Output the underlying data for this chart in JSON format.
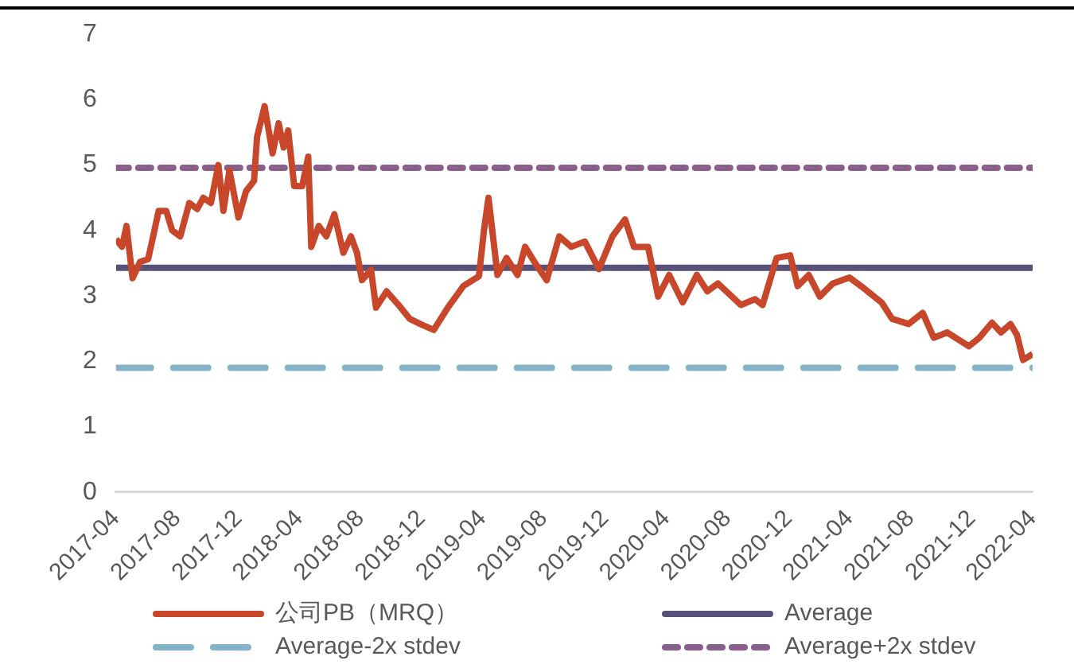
{
  "chart_data": {
    "type": "line",
    "legend": "bottom",
    "grid": false,
    "marker": "none",
    "x": [
      "2017-04-01",
      "2017-04-13",
      "2017-04-22",
      "2017-05-04",
      "2017-05-19",
      "2017-06-04",
      "2017-06-14",
      "2017-06-25",
      "2017-07-10",
      "2017-07-22",
      "2017-08-07",
      "2017-08-25",
      "2017-09-10",
      "2017-09-22",
      "2017-10-07",
      "2017-10-22",
      "2017-11-01",
      "2017-11-13",
      "2017-12-01",
      "2017-12-16",
      "2018-01-01",
      "2018-01-07",
      "2018-01-22",
      "2018-02-07",
      "2018-02-19",
      "2018-03-01",
      "2018-03-10",
      "2018-03-22",
      "2018-04-07",
      "2018-04-19",
      "2018-04-25",
      "2018-05-10",
      "2018-05-25",
      "2018-06-10",
      "2018-06-28",
      "2018-07-13",
      "2018-07-25",
      "2018-08-04",
      "2018-08-22",
      "2018-09-01",
      "2018-09-22",
      "2018-10-16",
      "2018-11-07",
      "2018-11-28",
      "2018-12-25",
      "2019-01-22",
      "2019-02-22",
      "2019-03-25",
      "2019-04-04",
      "2019-04-13",
      "2019-04-22",
      "2019-05-01",
      "2019-05-19",
      "2019-06-10",
      "2019-06-25",
      "2019-07-16",
      "2019-08-07",
      "2019-09-01",
      "2019-09-25",
      "2019-10-22",
      "2019-11-19",
      "2019-12-16",
      "2020-01-10",
      "2020-01-28",
      "2020-02-25",
      "2020-03-16",
      "2020-04-07",
      "2020-05-04",
      "2020-06-01",
      "2020-06-22",
      "2020-07-13",
      "2020-08-28",
      "2020-09-25",
      "2020-10-10",
      "2020-11-07",
      "2020-12-04",
      "2020-12-19",
      "2021-01-10",
      "2021-02-01",
      "2021-02-27",
      "2021-04-01",
      "2021-05-01",
      "2021-06-04",
      "2021-06-25",
      "2021-07-28",
      "2021-08-25",
      "2021-09-16",
      "2021-10-13",
      "2021-11-25",
      "2021-12-16",
      "2022-01-10",
      "2022-01-28",
      "2022-02-16",
      "2022-03-01",
      "2022-03-13",
      "2022-04-01"
    ],
    "series": [
      {
        "name": "公司PB（MRQ）",
        "color": "#c8472a",
        "line_style": "solid",
        "values": [
          3.87,
          3.75,
          4.07,
          3.27,
          3.52,
          3.56,
          3.91,
          4.3,
          4.3,
          4.0,
          3.91,
          4.42,
          4.33,
          4.5,
          4.42,
          5.0,
          4.3,
          4.92,
          4.2,
          4.6,
          4.76,
          5.43,
          5.9,
          5.18,
          5.64,
          5.27,
          5.53,
          4.68,
          4.68,
          5.13,
          3.75,
          4.07,
          3.91,
          4.25,
          3.66,
          3.91,
          3.66,
          3.24,
          3.4,
          2.82,
          3.07,
          2.86,
          2.65,
          2.57,
          2.48,
          2.82,
          3.15,
          3.3,
          4.0,
          4.5,
          3.91,
          3.32,
          3.58,
          3.32,
          3.75,
          3.49,
          3.24,
          3.91,
          3.75,
          3.83,
          3.41,
          3.91,
          4.17,
          3.75,
          3.75,
          2.99,
          3.32,
          2.9,
          3.32,
          3.07,
          3.19,
          2.86,
          2.95,
          2.86,
          3.58,
          3.62,
          3.15,
          3.32,
          2.99,
          3.19,
          3.28,
          3.11,
          2.9,
          2.65,
          2.57,
          2.74,
          2.36,
          2.44,
          2.23,
          2.36,
          2.59,
          2.44,
          2.57,
          2.4,
          2.02,
          2.11
        ]
      }
    ],
    "ref_lines": [
      {
        "axis": "y",
        "value": 3.43,
        "label": "Average",
        "color": "#58527a",
        "line_style": "solid"
      },
      {
        "axis": "y",
        "value": 1.9,
        "label": "Average-2x stdev",
        "color": "#85b3c8",
        "line_style": "dashed"
      },
      {
        "axis": "y",
        "value": 4.96,
        "label": "Average+2x stdev",
        "color": "#8a5f8e",
        "line_style": "dotted"
      }
    ],
    "xlim": [
      "2017-04",
      "2022-04"
    ],
    "xticks": [
      "2017-04",
      "2017-08",
      "2017-12",
      "2018-04",
      "2018-08",
      "2018-12",
      "2019-04",
      "2019-08",
      "2019-12",
      "2020-04",
      "2020-08",
      "2020-12",
      "2021-04",
      "2021-08",
      "2021-12",
      "2022-04"
    ],
    "ylim": [
      0,
      7
    ],
    "yticks": [
      0,
      1,
      2,
      3,
      4,
      5,
      6,
      7
    ]
  }
}
